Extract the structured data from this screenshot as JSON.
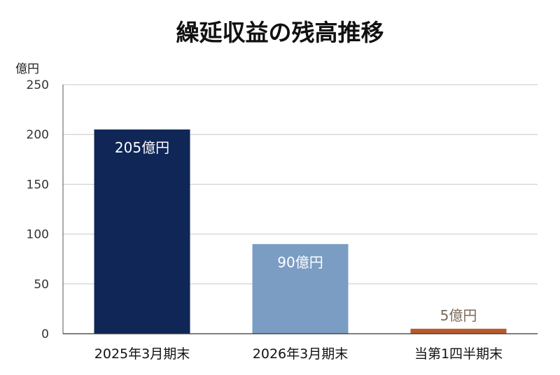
{
  "chart_data": {
    "type": "bar",
    "title": "繰延収益の残高推移",
    "ylabel": "億円",
    "xlabel": "",
    "categories": [
      "2025年3月期末",
      "2026年3月期末",
      "当第1四半期末"
    ],
    "values": [
      205,
      90,
      5
    ],
    "data_labels": [
      "205億円",
      "90億円",
      "5億円"
    ],
    "colors": [
      "#0f2656",
      "#7b9dc3",
      "#b85a2c"
    ],
    "label_colors": [
      "#ffffff",
      "#ffffff",
      "#7a6a5a"
    ],
    "ylim": [
      0,
      250
    ],
    "yticks": [
      "0",
      "50",
      "100",
      "150",
      "200",
      "250"
    ],
    "grid": true,
    "legend": "none"
  }
}
